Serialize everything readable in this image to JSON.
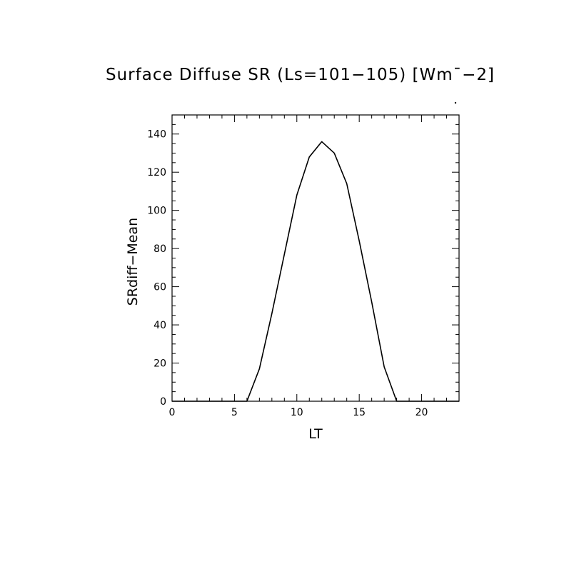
{
  "chart_data": {
    "type": "line",
    "title": "Surface Diffuse SR (Ls=101−105) [Wm¯−2]",
    "xlabel": "LT",
    "ylabel": "SRdiff−Mean",
    "xlim": [
      0,
      23
    ],
    "ylim": [
      0,
      150
    ],
    "xticks": [
      0,
      5,
      10,
      15,
      20
    ],
    "yticks": [
      0,
      20,
      40,
      60,
      80,
      100,
      120,
      140
    ],
    "x_minor_step": 1,
    "y_minor_step": 5,
    "grid": false,
    "series": [
      {
        "x": [
          0,
          1,
          2,
          3,
          4,
          5,
          6,
          7,
          8,
          9,
          10,
          11,
          12,
          13,
          14,
          15,
          16,
          17,
          18,
          19,
          20,
          21,
          22,
          23
        ],
        "y": [
          0,
          0,
          0,
          0,
          0,
          0,
          0,
          17,
          46,
          77,
          108,
          128,
          136,
          130,
          114,
          84,
          52,
          18,
          0,
          0,
          0,
          0,
          0,
          0
        ]
      }
    ]
  }
}
